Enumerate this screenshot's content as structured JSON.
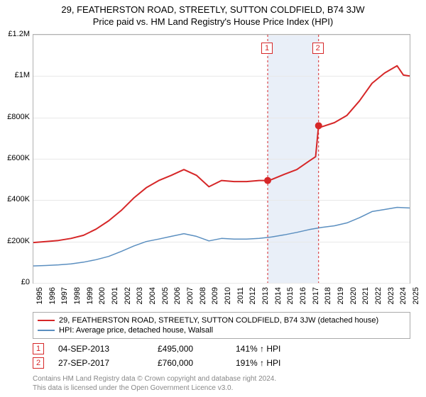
{
  "title": "29, FEATHERSTON ROAD, STREETLY, SUTTON COLDFIELD, B74 3JW",
  "subtitle": "Price paid vs. HM Land Registry's House Price Index (HPI)",
  "chart": {
    "type": "line",
    "background_color": "#ffffff",
    "grid_color": "#e8e8e8",
    "border_color": "#b0b0b0",
    "x_start_year": 1995,
    "x_end_year": 2025,
    "ylim": [
      0,
      1200000
    ],
    "yticks": [
      {
        "v": 0,
        "label": "£0"
      },
      {
        "v": 200000,
        "label": "£200K"
      },
      {
        "v": 400000,
        "label": "£400K"
      },
      {
        "v": 600000,
        "label": "£600K"
      },
      {
        "v": 800000,
        "label": "£800K"
      },
      {
        "v": 1000000,
        "label": "£1M"
      },
      {
        "v": 1200000,
        "label": "£1.2M"
      }
    ],
    "xticks": [
      1995,
      1996,
      1997,
      1998,
      1999,
      2000,
      2001,
      2002,
      2003,
      2004,
      2005,
      2006,
      2007,
      2008,
      2009,
      2010,
      2011,
      2012,
      2013,
      2014,
      2015,
      2016,
      2017,
      2018,
      2019,
      2020,
      2021,
      2022,
      2023,
      2024,
      2025
    ],
    "shade_band": {
      "from_year": 2013.68,
      "to_year": 2017.74,
      "color": "#dfe8f5"
    },
    "series": [
      {
        "name": "29, FEATHERSTON ROAD, STREETLY, SUTTON COLDFIELD, B74 3JW (detached house)",
        "color": "#d62728",
        "width": 2,
        "points": [
          [
            1995,
            195000
          ],
          [
            1996,
            200000
          ],
          [
            1997,
            205000
          ],
          [
            1998,
            215000
          ],
          [
            1999,
            230000
          ],
          [
            2000,
            260000
          ],
          [
            2001,
            300000
          ],
          [
            2002,
            350000
          ],
          [
            2003,
            410000
          ],
          [
            2004,
            460000
          ],
          [
            2005,
            495000
          ],
          [
            2006,
            520000
          ],
          [
            2007,
            548000
          ],
          [
            2008,
            520000
          ],
          [
            2009,
            465000
          ],
          [
            2010,
            495000
          ],
          [
            2011,
            490000
          ],
          [
            2012,
            490000
          ],
          [
            2013,
            495000
          ],
          [
            2013.68,
            495000
          ],
          [
            2014,
            500000
          ],
          [
            2015,
            525000
          ],
          [
            2016,
            548000
          ],
          [
            2017,
            590000
          ],
          [
            2017.5,
            610000
          ],
          [
            2017.74,
            760000
          ],
          [
            2018,
            755000
          ],
          [
            2019,
            775000
          ],
          [
            2020,
            810000
          ],
          [
            2021,
            880000
          ],
          [
            2022,
            965000
          ],
          [
            2023,
            1015000
          ],
          [
            2024,
            1050000
          ],
          [
            2024.5,
            1005000
          ],
          [
            2025,
            1000000
          ]
        ]
      },
      {
        "name": "HPI: Average price, detached house, Walsall",
        "color": "#5b8fc0",
        "width": 1.5,
        "points": [
          [
            1995,
            82000
          ],
          [
            1996,
            84000
          ],
          [
            1997,
            87000
          ],
          [
            1998,
            92000
          ],
          [
            1999,
            100000
          ],
          [
            2000,
            112000
          ],
          [
            2001,
            128000
          ],
          [
            2002,
            152000
          ],
          [
            2003,
            178000
          ],
          [
            2004,
            200000
          ],
          [
            2005,
            212000
          ],
          [
            2006,
            225000
          ],
          [
            2007,
            238000
          ],
          [
            2008,
            225000
          ],
          [
            2009,
            203000
          ],
          [
            2010,
            215000
          ],
          [
            2011,
            212000
          ],
          [
            2012,
            212000
          ],
          [
            2013,
            215000
          ],
          [
            2014,
            222000
          ],
          [
            2015,
            232000
          ],
          [
            2016,
            244000
          ],
          [
            2017,
            258000
          ],
          [
            2018,
            268000
          ],
          [
            2019,
            276000
          ],
          [
            2020,
            290000
          ],
          [
            2021,
            315000
          ],
          [
            2022,
            345000
          ],
          [
            2023,
            355000
          ],
          [
            2024,
            365000
          ],
          [
            2025,
            362000
          ]
        ]
      }
    ],
    "sale_markers": [
      {
        "n": "1",
        "year": 2013.68,
        "price": 495000
      },
      {
        "n": "2",
        "year": 2017.74,
        "price": 760000
      }
    ]
  },
  "legend": {
    "rows": [
      {
        "color": "#d62728",
        "label": "29, FEATHERSTON ROAD, STREETLY, SUTTON COLDFIELD, B74 3JW (detached house)"
      },
      {
        "color": "#5b8fc0",
        "label": "HPI: Average price, detached house, Walsall"
      }
    ]
  },
  "sales": [
    {
      "n": "1",
      "date": "04-SEP-2013",
      "price": "£495,000",
      "hpi": "141% ↑ HPI"
    },
    {
      "n": "2",
      "date": "27-SEP-2017",
      "price": "£760,000",
      "hpi": "191% ↑ HPI"
    }
  ],
  "footer": {
    "line1": "Contains HM Land Registry data © Crown copyright and database right 2024.",
    "line2": "This data is licensed under the Open Government Licence v3.0."
  }
}
